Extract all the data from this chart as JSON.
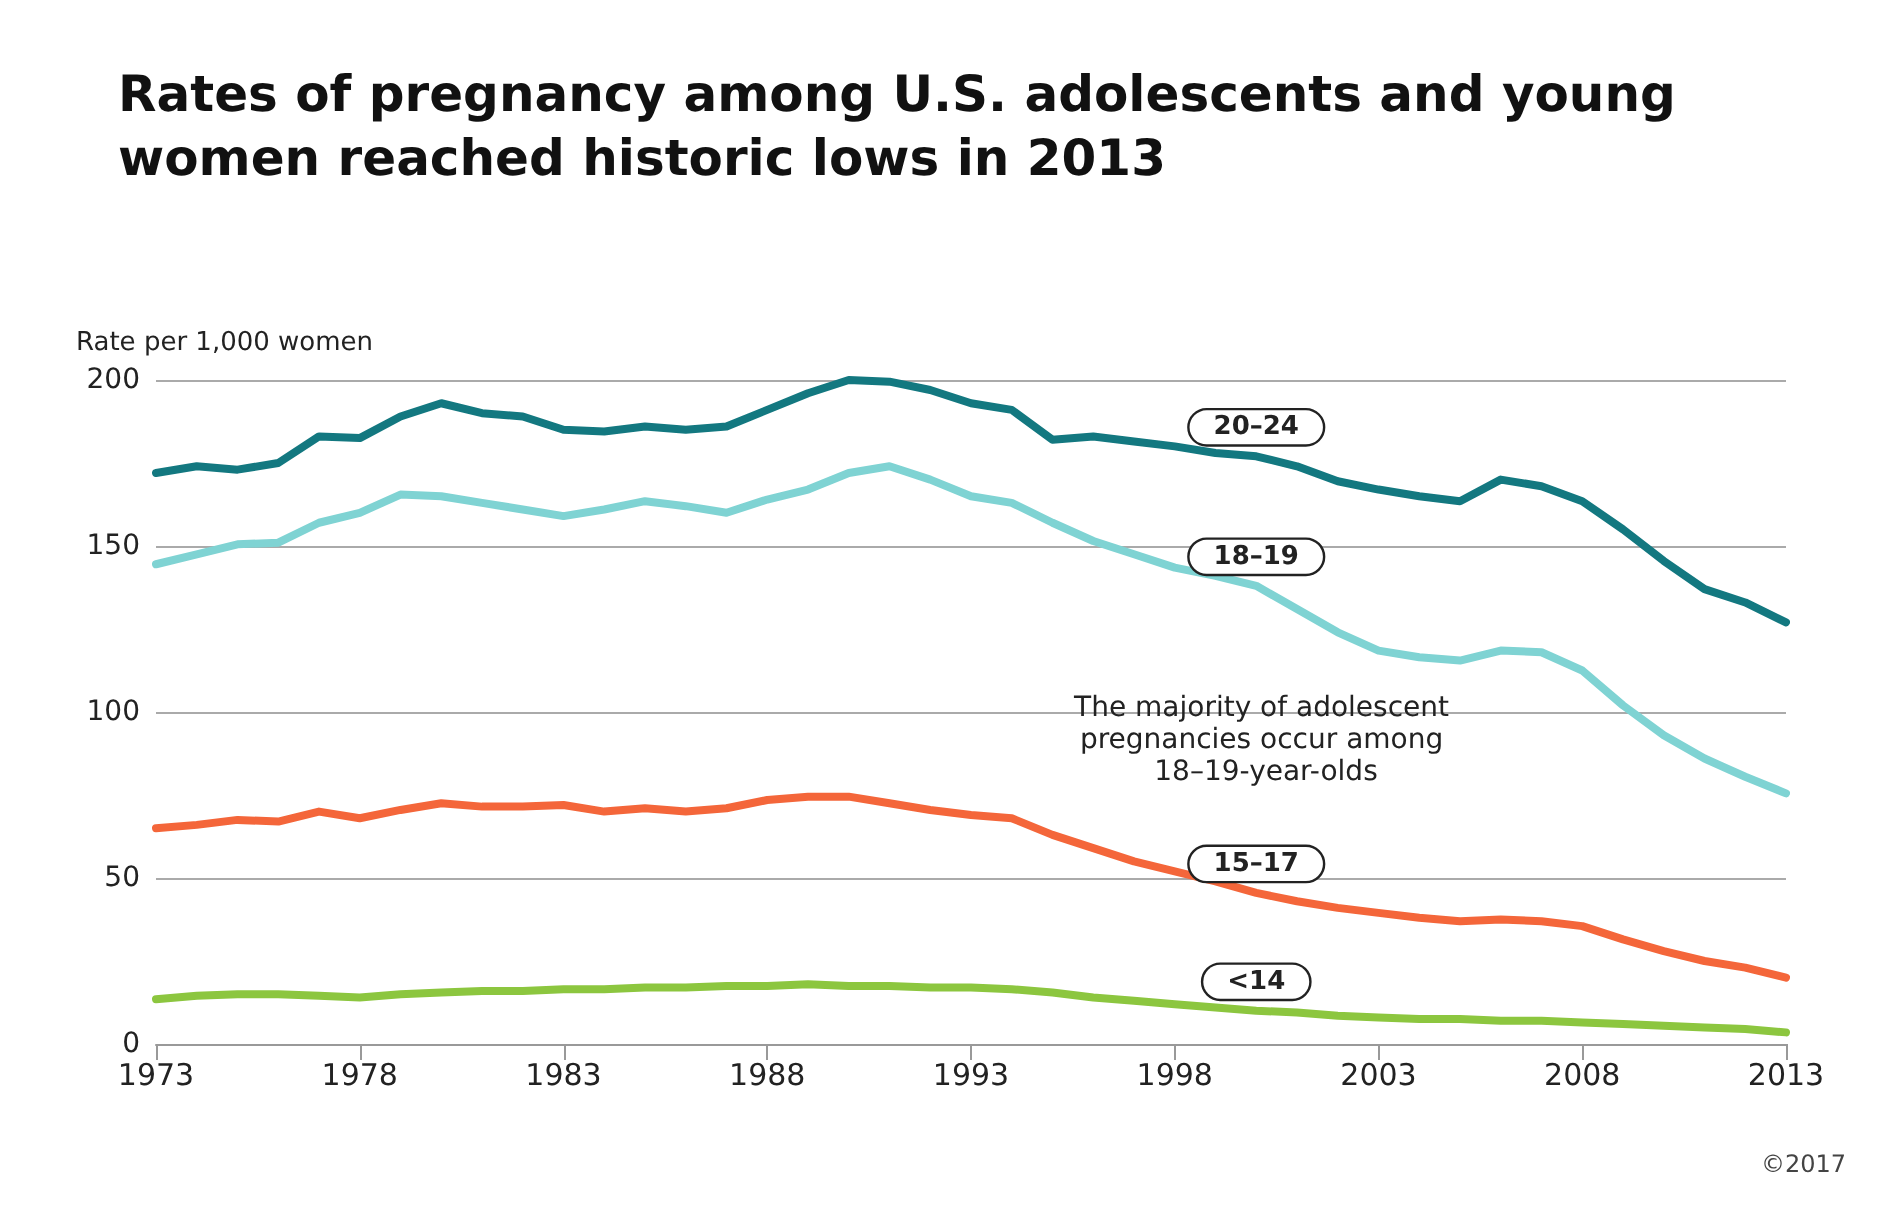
{
  "chart_data": {
    "type": "line",
    "title": "Rates of pregnancy among U.S. adolescents and young women reached historic lows in 2013",
    "ylabel": "Rate per 1,000 women",
    "x": [
      1973,
      1974,
      1975,
      1976,
      1977,
      1978,
      1979,
      1980,
      1981,
      1982,
      1983,
      1984,
      1985,
      1986,
      1987,
      1988,
      1989,
      1990,
      1991,
      1992,
      1993,
      1994,
      1995,
      1996,
      1997,
      1998,
      1999,
      2000,
      2001,
      2002,
      2003,
      2004,
      2005,
      2006,
      2007,
      2008,
      2009,
      2010,
      2011,
      2012,
      2013
    ],
    "series": [
      {
        "name": "20–24",
        "color": "#137880",
        "values": [
          172,
          174,
          173,
          175,
          183,
          182.5,
          189,
          193,
          190,
          189,
          185,
          184.5,
          186,
          185,
          186,
          191,
          196,
          200,
          199.5,
          197,
          193,
          191,
          182,
          183,
          181.5,
          180,
          178,
          177,
          174,
          169.5,
          167,
          165,
          163.5,
          170,
          168,
          163.5,
          155,
          145.5,
          137,
          133,
          127
        ]
      },
      {
        "name": "18–19",
        "color": "#7fd3d3",
        "values": [
          144.5,
          147.5,
          150.5,
          151,
          157,
          160,
          165.5,
          165,
          163,
          161,
          159,
          161,
          163.5,
          162,
          160,
          164,
          167,
          172,
          174,
          170,
          165,
          163,
          157,
          151.5,
          147.5,
          143.5,
          141,
          138,
          131,
          124,
          118.5,
          116.5,
          115.5,
          118.5,
          118,
          112.5,
          102,
          93,
          86,
          80.5,
          75.5
        ]
      },
      {
        "name": "15–17",
        "color": "#f4663a",
        "values": [
          65,
          66,
          67.5,
          67,
          70,
          68,
          70.5,
          72.5,
          71.5,
          71.5,
          72,
          70,
          71,
          70,
          71,
          73.5,
          74.5,
          74.5,
          72.5,
          70.5,
          69,
          68,
          63,
          59,
          55,
          52,
          49,
          45.5,
          43,
          41,
          39.5,
          38,
          37,
          37.5,
          37,
          35.5,
          31.5,
          28,
          25,
          23,
          20
        ]
      },
      {
        "name": "<14",
        "color": "#8cc63f",
        "values": [
          13.5,
          14.5,
          15,
          15,
          14.5,
          14,
          15,
          15.5,
          16,
          16,
          16.5,
          16.5,
          17,
          17,
          17.5,
          17.5,
          18,
          17.5,
          17.5,
          17,
          17,
          16.5,
          15.5,
          14,
          13,
          12,
          11,
          10,
          9.5,
          8.5,
          8,
          7.5,
          7.5,
          7,
          7,
          6.5,
          6,
          5.5,
          5,
          4.5,
          3.5
        ]
      }
    ],
    "xlim": [
      1973,
      2013
    ],
    "xticks": [
      1973,
      1978,
      1983,
      1988,
      1993,
      1998,
      2003,
      2008,
      2013
    ],
    "ylim": [
      0,
      200
    ],
    "yticks": [
      0,
      50,
      100,
      150,
      200
    ],
    "grid": "y",
    "legend": false,
    "marker": "none",
    "line_style": "solid",
    "annotations": [
      "The majority of adolescent pregnancies occur among 18–19-year-olds",
      "©2017"
    ]
  }
}
